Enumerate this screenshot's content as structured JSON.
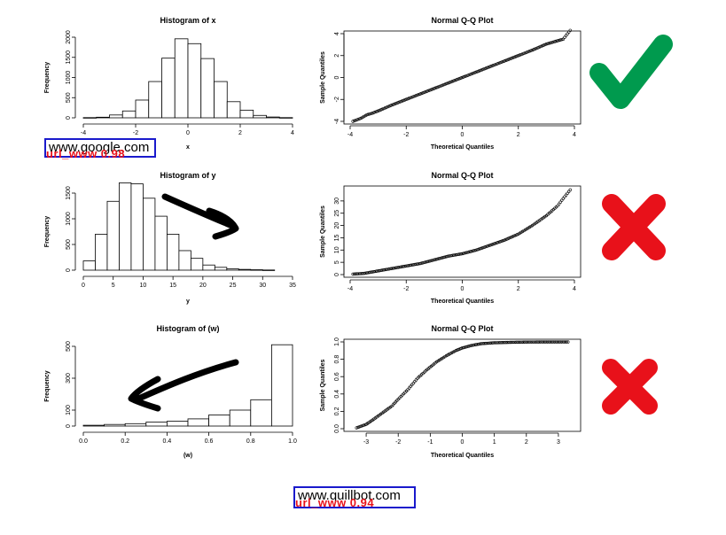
{
  "chart_data": [
    {
      "type": "bar",
      "title": "Histogram of x",
      "xlabel": "x",
      "ylabel": "Frequency",
      "xlim": [
        -4,
        4
      ],
      "ylim": [
        0,
        2000
      ],
      "x_ticks": [
        "-4",
        "-2",
        "0",
        "2",
        "4"
      ],
      "y_ticks": [
        "0",
        "500",
        "1000",
        "1500",
        "2000"
      ],
      "bin_edges": [
        -4,
        -3.5,
        -3,
        -2.5,
        -2,
        -1.5,
        -1,
        -0.5,
        0,
        0.5,
        1,
        1.5,
        2,
        2.5,
        3,
        3.5,
        4
      ],
      "values": [
        5,
        15,
        70,
        170,
        440,
        900,
        1480,
        1960,
        1840,
        1470,
        900,
        400,
        190,
        60,
        20,
        5
      ]
    },
    {
      "type": "scatter",
      "title": "Normal Q-Q Plot",
      "xlabel": "Theoretical Quantiles",
      "ylabel": "Sample Quantiles",
      "xlim": [
        -4,
        4
      ],
      "ylim": [
        -4,
        4
      ],
      "x_ticks": [
        "-4",
        "-2",
        "0",
        "2",
        "4"
      ],
      "y_ticks": [
        "-4",
        "-2",
        "0",
        "2",
        "4"
      ],
      "points": [
        [
          -3.9,
          -4.0
        ],
        [
          -3.6,
          -3.7
        ],
        [
          -3.4,
          -3.4
        ],
        [
          -3.2,
          -3.25
        ],
        [
          -3.0,
          -3.05
        ],
        [
          -2.5,
          -2.5
        ],
        [
          -2.0,
          -2.0
        ],
        [
          -1.5,
          -1.5
        ],
        [
          -1.0,
          -1.0
        ],
        [
          -0.5,
          -0.5
        ],
        [
          0,
          0
        ],
        [
          0.5,
          0.5
        ],
        [
          1.0,
          1.0
        ],
        [
          1.5,
          1.5
        ],
        [
          2.0,
          2.0
        ],
        [
          2.5,
          2.5
        ],
        [
          3.0,
          3.05
        ],
        [
          3.2,
          3.2
        ],
        [
          3.4,
          3.35
        ],
        [
          3.6,
          3.5
        ],
        [
          3.85,
          4.3
        ]
      ]
    },
    {
      "type": "bar",
      "title": "Histogram of y",
      "xlabel": "y",
      "ylabel": "Frequency",
      "xlim": [
        0,
        35
      ],
      "ylim": [
        0,
        1500
      ],
      "x_ticks": [
        "0",
        "5",
        "10",
        "15",
        "20",
        "25",
        "30",
        "35"
      ],
      "y_ticks": [
        "0",
        "500",
        "1000",
        "1500"
      ],
      "bin_edges": [
        0,
        2,
        4,
        6,
        8,
        10,
        12,
        14,
        16,
        18,
        20,
        22,
        24,
        26,
        28,
        30,
        32
      ],
      "values": [
        180,
        700,
        1340,
        1700,
        1680,
        1400,
        1050,
        700,
        380,
        230,
        100,
        55,
        25,
        15,
        8,
        3
      ]
    },
    {
      "type": "scatter",
      "title": "Normal Q-Q Plot",
      "xlabel": "Theoretical Quantiles",
      "ylabel": "Sample Quantiles",
      "xlim": [
        -4,
        4
      ],
      "ylim": [
        0,
        35
      ],
      "x_ticks": [
        "-4",
        "-2",
        "0",
        "2",
        "4"
      ],
      "y_ticks": [
        "0",
        "5",
        "10",
        "15",
        "20",
        "25",
        "30"
      ],
      "points": [
        [
          -3.9,
          0.2
        ],
        [
          -3.5,
          0.5
        ],
        [
          -3.0,
          1.5
        ],
        [
          -2.5,
          2.5
        ],
        [
          -2.0,
          3.5
        ],
        [
          -1.5,
          4.5
        ],
        [
          -1.0,
          6.0
        ],
        [
          -0.5,
          7.5
        ],
        [
          0,
          8.5
        ],
        [
          0.5,
          10.0
        ],
        [
          1.0,
          12.0
        ],
        [
          1.5,
          14.0
        ],
        [
          2.0,
          16.5
        ],
        [
          2.5,
          20.0
        ],
        [
          3.0,
          24.0
        ],
        [
          3.4,
          28.0
        ],
        [
          3.6,
          31.0
        ],
        [
          3.85,
          34.5
        ]
      ]
    },
    {
      "type": "bar",
      "title": "Histogram of (w)",
      "xlabel": "(w)",
      "ylabel": "Frequency",
      "xlim": [
        0,
        1
      ],
      "ylim": [
        0,
        500
      ],
      "x_ticks": [
        "0.0",
        "0.2",
        "0.4",
        "0.6",
        "0.8",
        "1.0"
      ],
      "y_ticks": [
        "0",
        "100",
        "300",
        "500"
      ],
      "bin_edges": [
        0,
        0.1,
        0.2,
        0.3,
        0.4,
        0.5,
        0.6,
        0.7,
        0.8,
        0.9,
        1.0
      ],
      "values": [
        5,
        10,
        15,
        25,
        30,
        45,
        70,
        100,
        165,
        510
      ]
    },
    {
      "type": "scatter",
      "title": "Normal Q-Q Plot",
      "xlabel": "Theoretical Quantiles",
      "ylabel": "Sample Quantiles",
      "xlim": [
        -3.5,
        3.5
      ],
      "ylim": [
        0,
        1
      ],
      "x_ticks": [
        "-3",
        "-2",
        "-1",
        "0",
        "1",
        "2",
        "3"
      ],
      "y_ticks": [
        "0.0",
        "0.2",
        "0.4",
        "0.6",
        "0.8",
        "1.0"
      ],
      "points": [
        [
          -3.3,
          0.01
        ],
        [
          -3.0,
          0.05
        ],
        [
          -2.8,
          0.1
        ],
        [
          -2.5,
          0.18
        ],
        [
          -2.2,
          0.26
        ],
        [
          -2.0,
          0.34
        ],
        [
          -1.7,
          0.45
        ],
        [
          -1.4,
          0.58
        ],
        [
          -1.1,
          0.68
        ],
        [
          -0.8,
          0.77
        ],
        [
          -0.5,
          0.84
        ],
        [
          -0.2,
          0.9
        ],
        [
          0,
          0.93
        ],
        [
          0.3,
          0.96
        ],
        [
          0.6,
          0.98
        ],
        [
          1.0,
          0.99
        ],
        [
          1.5,
          0.995
        ],
        [
          2.0,
          0.998
        ],
        [
          2.5,
          0.999
        ],
        [
          3.3,
          0.999
        ]
      ]
    }
  ],
  "badges": {
    "normal_check_color": "#009a4e",
    "not_normal_cross_color": "#e8111a",
    "check_icon": "check-icon",
    "cross_icon": "cross-icon"
  },
  "annotations": {
    "arrow_icon": "arrow-icon",
    "arrow_color": "#000000"
  },
  "watermarks": [
    {
      "url": "www.google.com",
      "tag": "url_www 0.98"
    },
    {
      "url": "www.quillbot.com",
      "tag": "url_www 0.94"
    }
  ]
}
